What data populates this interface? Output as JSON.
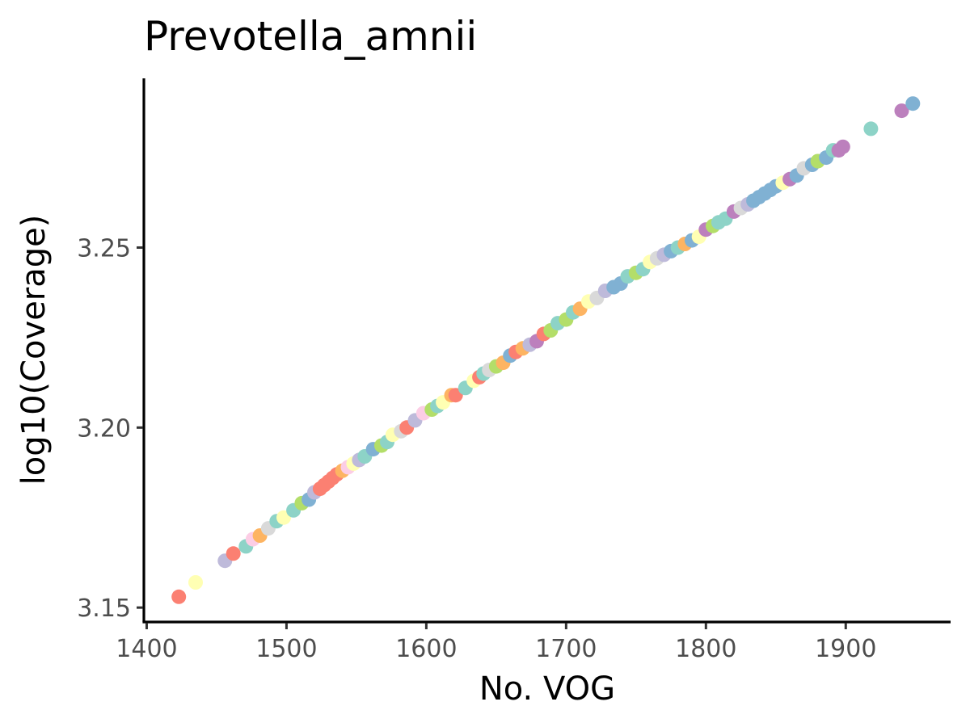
{
  "chart_data": {
    "type": "scatter",
    "title": "Prevotella_amnii",
    "xlabel": "No. VOG",
    "ylabel": "log10(Coverage)",
    "xlim": [
      1398,
      1975
    ],
    "ylim": [
      3.146,
      3.297
    ],
    "xticks": [
      1400,
      1500,
      1600,
      1700,
      1800,
      1900
    ],
    "yticks": [
      3.15,
      3.2,
      3.25
    ],
    "ytick_labels": [
      "3.15",
      "3.20",
      "3.25"
    ],
    "grid": false,
    "legend": "none",
    "palette": [
      "#8DD3C7",
      "#FFFFB3",
      "#BEBADA",
      "#FB8072",
      "#80B1D3",
      "#FDB462",
      "#B3DE69",
      "#FCCDE5",
      "#D9D9D9",
      "#BC80BD"
    ],
    "points": [
      {
        "x": 1423,
        "y": 3.153,
        "c": 3
      },
      {
        "x": 1435,
        "y": 3.157,
        "c": 1
      },
      {
        "x": 1456,
        "y": 3.163,
        "c": 2
      },
      {
        "x": 1462,
        "y": 3.165,
        "c": 3
      },
      {
        "x": 1471,
        "y": 3.167,
        "c": 0
      },
      {
        "x": 1476,
        "y": 3.169,
        "c": 7
      },
      {
        "x": 1481,
        "y": 3.17,
        "c": 5
      },
      {
        "x": 1487,
        "y": 3.172,
        "c": 8
      },
      {
        "x": 1493,
        "y": 3.174,
        "c": 0
      },
      {
        "x": 1498,
        "y": 3.175,
        "c": 1
      },
      {
        "x": 1505,
        "y": 3.177,
        "c": 0
      },
      {
        "x": 1511,
        "y": 3.179,
        "c": 6
      },
      {
        "x": 1516,
        "y": 3.18,
        "c": 4
      },
      {
        "x": 1520,
        "y": 3.182,
        "c": 2
      },
      {
        "x": 1524,
        "y": 3.183,
        "c": 3
      },
      {
        "x": 1527,
        "y": 3.184,
        "c": 3
      },
      {
        "x": 1530,
        "y": 3.185,
        "c": 3
      },
      {
        "x": 1533,
        "y": 3.186,
        "c": 3
      },
      {
        "x": 1536,
        "y": 3.187,
        "c": 3
      },
      {
        "x": 1540,
        "y": 3.188,
        "c": 5
      },
      {
        "x": 1544,
        "y": 3.189,
        "c": 7
      },
      {
        "x": 1548,
        "y": 3.19,
        "c": 1
      },
      {
        "x": 1552,
        "y": 3.191,
        "c": 2
      },
      {
        "x": 1556,
        "y": 3.192,
        "c": 0
      },
      {
        "x": 1562,
        "y": 3.194,
        "c": 4
      },
      {
        "x": 1568,
        "y": 3.195,
        "c": 6
      },
      {
        "x": 1572,
        "y": 3.196,
        "c": 0
      },
      {
        "x": 1576,
        "y": 3.198,
        "c": 1
      },
      {
        "x": 1582,
        "y": 3.199,
        "c": 8
      },
      {
        "x": 1586,
        "y": 3.2,
        "c": 3
      },
      {
        "x": 1592,
        "y": 3.202,
        "c": 2
      },
      {
        "x": 1598,
        "y": 3.204,
        "c": 7
      },
      {
        "x": 1604,
        "y": 3.205,
        "c": 6
      },
      {
        "x": 1608,
        "y": 3.206,
        "c": 0
      },
      {
        "x": 1612,
        "y": 3.207,
        "c": 1
      },
      {
        "x": 1618,
        "y": 3.209,
        "c": 5
      },
      {
        "x": 1621,
        "y": 3.209,
        "c": 3
      },
      {
        "x": 1628,
        "y": 3.211,
        "c": 0
      },
      {
        "x": 1634,
        "y": 3.213,
        "c": 1
      },
      {
        "x": 1638,
        "y": 3.214,
        "c": 3
      },
      {
        "x": 1641,
        "y": 3.215,
        "c": 0
      },
      {
        "x": 1645,
        "y": 3.216,
        "c": 8
      },
      {
        "x": 1650,
        "y": 3.217,
        "c": 6
      },
      {
        "x": 1655,
        "y": 3.218,
        "c": 5
      },
      {
        "x": 1660,
        "y": 3.22,
        "c": 4
      },
      {
        "x": 1664,
        "y": 3.221,
        "c": 3
      },
      {
        "x": 1669,
        "y": 3.222,
        "c": 5
      },
      {
        "x": 1674,
        "y": 3.223,
        "c": 2
      },
      {
        "x": 1679,
        "y": 3.224,
        "c": 9
      },
      {
        "x": 1684,
        "y": 3.226,
        "c": 3
      },
      {
        "x": 1689,
        "y": 3.227,
        "c": 6
      },
      {
        "x": 1694,
        "y": 3.229,
        "c": 0
      },
      {
        "x": 1700,
        "y": 3.23,
        "c": 6
      },
      {
        "x": 1705,
        "y": 3.232,
        "c": 0
      },
      {
        "x": 1710,
        "y": 3.233,
        "c": 5
      },
      {
        "x": 1716,
        "y": 3.235,
        "c": 1
      },
      {
        "x": 1722,
        "y": 3.236,
        "c": 8
      },
      {
        "x": 1728,
        "y": 3.238,
        "c": 2
      },
      {
        "x": 1734,
        "y": 3.239,
        "c": 4
      },
      {
        "x": 1739,
        "y": 3.24,
        "c": 4
      },
      {
        "x": 1744,
        "y": 3.242,
        "c": 0
      },
      {
        "x": 1750,
        "y": 3.243,
        "c": 6
      },
      {
        "x": 1755,
        "y": 3.244,
        "c": 0
      },
      {
        "x": 1760,
        "y": 3.246,
        "c": 1
      },
      {
        "x": 1765,
        "y": 3.247,
        "c": 8
      },
      {
        "x": 1770,
        "y": 3.248,
        "c": 2
      },
      {
        "x": 1775,
        "y": 3.249,
        "c": 4
      },
      {
        "x": 1780,
        "y": 3.25,
        "c": 0
      },
      {
        "x": 1785,
        "y": 3.251,
        "c": 5
      },
      {
        "x": 1790,
        "y": 3.252,
        "c": 4
      },
      {
        "x": 1795,
        "y": 3.253,
        "c": 1
      },
      {
        "x": 1800,
        "y": 3.255,
        "c": 9
      },
      {
        "x": 1805,
        "y": 3.256,
        "c": 6
      },
      {
        "x": 1809,
        "y": 3.257,
        "c": 0
      },
      {
        "x": 1814,
        "y": 3.258,
        "c": 0
      },
      {
        "x": 1820,
        "y": 3.26,
        "c": 9
      },
      {
        "x": 1825,
        "y": 3.261,
        "c": 8
      },
      {
        "x": 1830,
        "y": 3.262,
        "c": 2
      },
      {
        "x": 1834,
        "y": 3.263,
        "c": 4
      },
      {
        "x": 1838,
        "y": 3.264,
        "c": 4
      },
      {
        "x": 1842,
        "y": 3.265,
        "c": 4
      },
      {
        "x": 1846,
        "y": 3.266,
        "c": 4
      },
      {
        "x": 1850,
        "y": 3.267,
        "c": 4
      },
      {
        "x": 1855,
        "y": 3.268,
        "c": 1
      },
      {
        "x": 1860,
        "y": 3.269,
        "c": 9
      },
      {
        "x": 1865,
        "y": 3.27,
        "c": 4
      },
      {
        "x": 1870,
        "y": 3.272,
        "c": 8
      },
      {
        "x": 1876,
        "y": 3.273,
        "c": 4
      },
      {
        "x": 1880,
        "y": 3.274,
        "c": 6
      },
      {
        "x": 1886,
        "y": 3.275,
        "c": 4
      },
      {
        "x": 1891,
        "y": 3.277,
        "c": 0
      },
      {
        "x": 1895,
        "y": 3.277,
        "c": 9
      },
      {
        "x": 1898,
        "y": 3.278,
        "c": 9
      },
      {
        "x": 1918,
        "y": 3.283,
        "c": 0
      },
      {
        "x": 1940,
        "y": 3.288,
        "c": 9
      },
      {
        "x": 1948,
        "y": 3.29,
        "c": 4
      }
    ]
  }
}
